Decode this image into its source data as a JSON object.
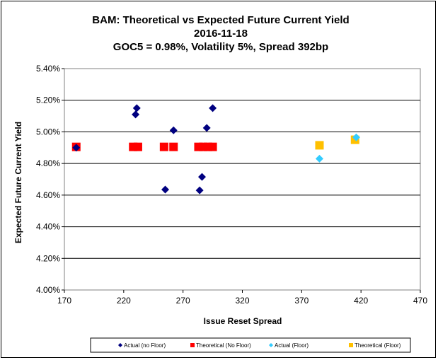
{
  "chart_data": {
    "type": "scatter",
    "title_lines": [
      "BAM: Theoretical vs Expected Future Current Yield",
      "2016-11-18",
      "GOC5 = 0.98%, Volatility 5%, Spread 392bp"
    ],
    "xlabel": "Issue Reset Spread",
    "ylabel": "Expected Future Current Yield",
    "xlim": [
      170,
      470
    ],
    "ylim": [
      4.0,
      5.4
    ],
    "x_ticks": [
      "170",
      "220",
      "270",
      "320",
      "370",
      "420",
      "470"
    ],
    "y_ticks": [
      "4.00%",
      "4.20%",
      "4.40%",
      "4.60%",
      "4.80%",
      "5.00%",
      "5.20%",
      "5.40%"
    ],
    "grid": "horizontal",
    "legend_position": "bottom",
    "series": [
      {
        "name": "Actual (no Floor)",
        "marker": "diamond",
        "color": "#000080",
        "points": [
          {
            "x": 180,
            "y": 4.9
          },
          {
            "x": 230,
            "y": 5.11
          },
          {
            "x": 231,
            "y": 5.15
          },
          {
            "x": 255,
            "y": 4.635
          },
          {
            "x": 262,
            "y": 5.01
          },
          {
            "x": 284,
            "y": 4.63
          },
          {
            "x": 286,
            "y": 4.715
          },
          {
            "x": 290,
            "y": 5.025
          },
          {
            "x": 295,
            "y": 5.15
          }
        ]
      },
      {
        "name": "Theoretical (No Floor)",
        "marker": "square",
        "color": "#ff0000",
        "points": [
          {
            "x": 180,
            "y": 4.905
          },
          {
            "x": 228,
            "y": 4.905
          },
          {
            "x": 232,
            "y": 4.905
          },
          {
            "x": 254,
            "y": 4.905
          },
          {
            "x": 262,
            "y": 4.905
          },
          {
            "x": 283,
            "y": 4.905
          },
          {
            "x": 287,
            "y": 4.905
          },
          {
            "x": 291,
            "y": 4.905
          },
          {
            "x": 295,
            "y": 4.905
          }
        ]
      },
      {
        "name": "Actual (Floor)",
        "marker": "diamond",
        "color": "#33ccff",
        "points": [
          {
            "x": 385,
            "y": 4.83
          },
          {
            "x": 416,
            "y": 4.965
          }
        ]
      },
      {
        "name": "Theoretical (Floor)",
        "marker": "square",
        "color": "#ffc000",
        "points": [
          {
            "x": 385,
            "y": 4.915
          },
          {
            "x": 415,
            "y": 4.95
          }
        ]
      }
    ]
  }
}
